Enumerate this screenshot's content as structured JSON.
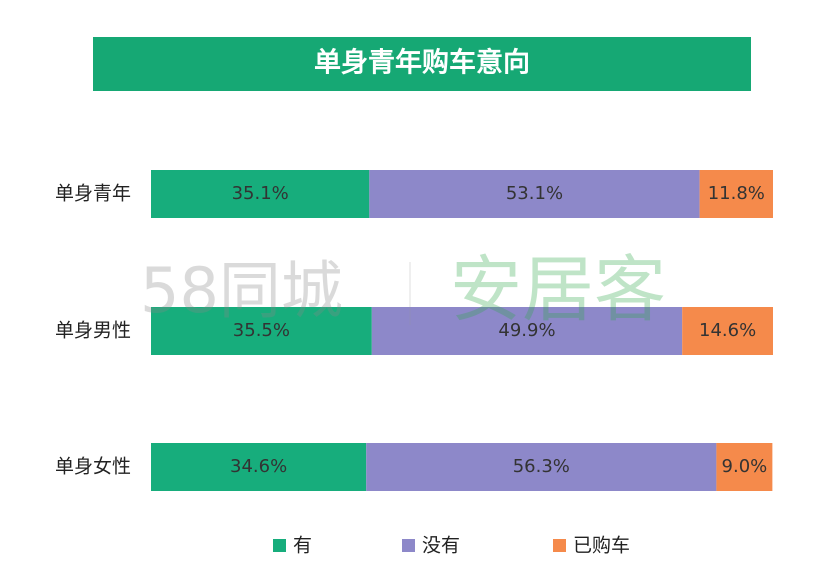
{
  "chart_data": {
    "type": "stacked-bar-horizontal",
    "title": "单身青年购车意向",
    "categories": [
      "单身青年",
      "单身男性",
      "单身女性"
    ],
    "series": [
      {
        "name": "有",
        "color": "#17ad7c",
        "values": [
          35.1,
          35.5,
          34.6
        ],
        "value_labels": [
          "35.1%",
          "35.5%",
          "34.6%"
        ]
      },
      {
        "name": "没有",
        "color": "#8d88c9",
        "values": [
          53.1,
          49.9,
          56.3
        ],
        "value_labels": [
          "53.1%",
          "49.9%",
          "56.3%"
        ]
      },
      {
        "name": "已购车",
        "color": "#f58a4b",
        "values": [
          11.8,
          14.6,
          9.0
        ],
        "value_labels": [
          "11.8%",
          "14.6%",
          "9.0%"
        ]
      }
    ],
    "xlim": [
      0,
      100
    ],
    "watermark": [
      "58同城",
      "安居客"
    ]
  }
}
